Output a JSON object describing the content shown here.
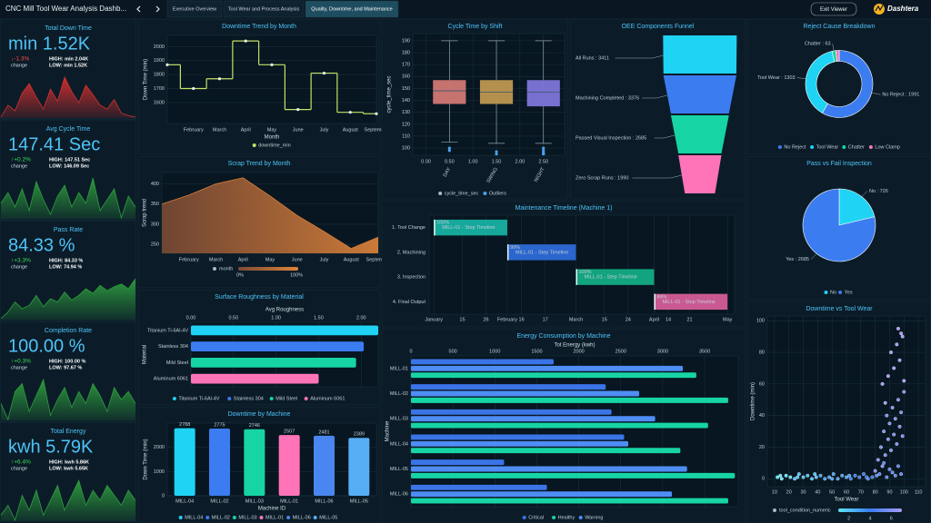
{
  "header": {
    "title": "CNC Mill Tool Wear Analysis Dashb...",
    "tabs": [
      "Executive Overview",
      "Tool Wear and Process Analysis",
      "Quality, Downtime, and Maintenance"
    ],
    "active_tab": 2,
    "exit": "Exit Viewer",
    "brand": "Dashtera"
  },
  "kpis": [
    {
      "title": "Total Down Time",
      "value": "min 1.52K",
      "change": "↓-1.3%",
      "change_label": "change",
      "high": "HIGH: min 2.04K",
      "low": "LOW: min 1.52K",
      "color": "#d32f2f",
      "spark": [
        20,
        35,
        28,
        50,
        62,
        45,
        30,
        55,
        40,
        70,
        52,
        38,
        60,
        48,
        35,
        30,
        42,
        25,
        22,
        20
      ]
    },
    {
      "title": "Avg Cycle Time",
      "value": "147.41 Sec",
      "change": "↑+0.2%",
      "change_label": "change",
      "high": "HIGH: 147.51 Sec",
      "low": "LOW: 146.09 Sec",
      "color": "#2e9e3e",
      "spark": [
        40,
        55,
        35,
        60,
        30,
        70,
        45,
        25,
        50,
        65,
        35,
        55,
        40,
        75,
        30,
        45,
        60,
        20,
        50,
        35
      ]
    },
    {
      "title": "Pass Rate",
      "value": "84.33 %",
      "change": "↑+3.3%",
      "change_label": "change",
      "high": "HIGH: 84.33 %",
      "low": "LOW: 74.94 %",
      "color": "#2e9e3e",
      "spark": [
        10,
        20,
        35,
        25,
        30,
        45,
        28,
        40,
        35,
        50,
        38,
        45,
        55,
        48,
        60,
        52,
        58,
        62,
        55,
        70
      ]
    },
    {
      "title": "Completion Rate",
      "value": "100.00 %",
      "change": "↑+0.3%",
      "change_label": "change",
      "high": "HIGH: 100.00 %",
      "low": "LOW: 97.67 %",
      "color": "#2e9e3e",
      "spark": [
        40,
        20,
        55,
        65,
        30,
        50,
        70,
        25,
        45,
        60,
        35,
        55,
        40,
        65,
        50,
        30,
        60,
        45,
        55,
        40
      ]
    },
    {
      "title": "Total Energy",
      "value": "kwh 5.79K",
      "change": "↑+6.4%",
      "change_label": "change",
      "high": "HIGH: kwh 5.86K",
      "low": "LOW: kwh 5.65K",
      "color": "#2e9e3e",
      "spark": [
        35,
        45,
        30,
        55,
        40,
        60,
        35,
        50,
        65,
        40,
        55,
        70,
        45,
        60,
        50,
        65,
        55,
        45,
        60,
        50
      ]
    }
  ],
  "chart_data": [
    {
      "type": "line",
      "title": "Downtime Trend by Month",
      "xlabel": "Month",
      "ylabel": "Down Time (min)",
      "categories": [
        null,
        "February",
        "March",
        "April",
        "May",
        "June",
        "July",
        "August",
        "September"
      ],
      "series": [
        {
          "name": "downtime_min",
          "color": "#c6e26a",
          "values": [
            1870,
            1700,
            1770,
            2040,
            1870,
            1550,
            1810,
            1530,
            1520
          ]
        }
      ],
      "ylim": [
        1450,
        2080
      ],
      "yticks": [
        1600,
        1700,
        1800,
        1900,
        2000
      ],
      "grid": true
    },
    {
      "type": "area",
      "title": "Scrap Trend by Month",
      "ylabel": "Scrap trend",
      "categories": [
        null,
        "February",
        "March",
        "April",
        "May",
        "June",
        "July",
        "August",
        "September"
      ],
      "series": [
        {
          "name": "month",
          "color": "#d9803a",
          "values": [
            350,
            372,
            400,
            415,
            370,
            322,
            282,
            240,
            268
          ]
        }
      ],
      "gradient_labels": [
        "0%",
        "100%"
      ],
      "ylim": [
        228,
        428
      ],
      "yticks": [
        250,
        300,
        350,
        400
      ],
      "grid": true
    },
    {
      "type": "hbar",
      "title": "Surface Roughness by Material",
      "xlabel": "Avg Roughness",
      "ylabel": "Material",
      "categories": [
        "Titanium Ti-6Al-4V",
        "Stainless 304",
        "Mild Steel",
        "Aluminum 6061"
      ],
      "values": [
        2.2,
        2.03,
        1.94,
        1.5
      ],
      "colors": [
        "#1fd3f5",
        "#3b7cf0",
        "#17d4a5",
        "#ff74b8"
      ],
      "xlim": [
        0,
        2.2
      ],
      "xticks": [
        {
          "value": 0,
          "label": "0.00"
        },
        {
          "value": 0.5,
          "label": "0.50"
        },
        {
          "value": 1,
          "label": "1.00"
        },
        {
          "value": 1.5,
          "label": "1.50"
        },
        {
          "value": 2,
          "label": "2.00"
        }
      ],
      "grid": true
    },
    {
      "type": "bar",
      "title": "Downtime by Machine",
      "xlabel": "Machine ID",
      "ylabel": "Down Time (min)",
      "categories": [
        "MILL-04",
        "MILL-02",
        "MILL-03",
        "MILL-01",
        "MILL-06",
        "MILL-05"
      ],
      "values": [
        2788,
        2775,
        2746,
        2507,
        2481,
        2389
      ],
      "colors": [
        "#1fd3f5",
        "#3b7cf0",
        "#17d4a5",
        "#ff74b8",
        "#4a86f0",
        "#56aef5"
      ],
      "ylim": [
        0,
        3000
      ],
      "yticks": [
        0,
        1000,
        2000
      ],
      "grid": true
    },
    {
      "type": "box",
      "title": "Cycle Time by Shift",
      "ylabel": "cycle_time_sec",
      "categories": [
        "DAY",
        "SWING",
        "NIGHT"
      ],
      "x": [
        0.5,
        1.5,
        2.5
      ],
      "colors": [
        "#e8837e",
        "#d2a657",
        "#8c80ef"
      ],
      "boxes": [
        {
          "min": 105,
          "q1": 137,
          "median": 148,
          "q3": 157,
          "max": 190,
          "outliers": [
            100,
            98
          ]
        },
        {
          "min": 104,
          "q1": 137,
          "median": 147,
          "q3": 157,
          "max": 190,
          "outliers": [
            97,
            95
          ]
        },
        {
          "min": 104,
          "q1": 135,
          "median": 147,
          "q3": 157,
          "max": 190,
          "outliers": [
            100,
            98,
            96,
            95
          ]
        }
      ],
      "legend": [
        "cycle_time_sec",
        "Outliers"
      ],
      "xlim": [
        -0.28,
        2.95
      ],
      "xticks": [
        {
          "value": 0,
          "label": "0.00"
        },
        {
          "value": 0.5,
          "label": "0.50"
        },
        {
          "value": 1,
          "label": "1.00"
        },
        {
          "value": 1.5,
          "label": "1.50"
        },
        {
          "value": 2,
          "label": "2.00"
        },
        {
          "value": 2.5,
          "label": "2.50"
        }
      ],
      "ylim": [
        94,
        196
      ],
      "yticks": [
        100,
        110,
        120,
        130,
        140,
        150,
        160,
        170,
        180,
        190
      ],
      "grid": true
    },
    {
      "type": "funnel",
      "title": "OEE Components Funnel",
      "values": [
        3411,
        3376,
        2685,
        1990
      ],
      "value_labels": [
        "All Runs : 3411",
        "Machining Completed : 3376",
        "Passed Visual Inspection : 2685",
        "Zero Scrap Runs : 1990"
      ],
      "colors": [
        "#1fd3f5",
        "#3b7cf0",
        "#17d4a5",
        "#ff74b8"
      ]
    },
    {
      "type": "gantt",
      "title": "Maintenance Timeline (Machine 1)",
      "categories": [
        "1. Tool Change",
        "2. Machining",
        "3. Inspection",
        "4. Final Output"
      ],
      "tasks": [
        {
          "start": 1,
          "end": 32,
          "progress": 100
        },
        {
          "start": 32,
          "end": 61,
          "progress": 99
        },
        {
          "start": 61,
          "end": 94,
          "progress": 100
        },
        {
          "start": 94,
          "end": 125,
          "progress": 84
        }
      ],
      "value_labels": [
        "100%",
        "99%",
        "100%",
        "84%"
      ],
      "task_labels": [
        "MILL-01 - Step Timeline",
        "MILL-01 - Step Timeline",
        "MILL-01 - Step Timeline",
        "MILL-01 - Step Timeline"
      ],
      "colors": [
        "#17b8a8",
        "#2f6fe0",
        "#14b48a",
        "#e0609e"
      ],
      "xlim": [
        -1,
        128
      ],
      "xticks": [
        {
          "value": 1,
          "label": "January"
        },
        {
          "value": 13,
          "label": "15"
        },
        {
          "value": 23,
          "label": "26"
        },
        {
          "value": 32,
          "label": "February"
        },
        {
          "value": 38,
          "label": "16"
        },
        {
          "value": 48,
          "label": "17"
        },
        {
          "value": 61,
          "label": "March"
        },
        {
          "value": 73,
          "label": "15"
        },
        {
          "value": 83,
          "label": "24"
        },
        {
          "value": 94,
          "label": "April"
        },
        {
          "value": 100,
          "label": "14"
        },
        {
          "value": 109,
          "label": "21"
        },
        {
          "value": 125,
          "label": "May"
        }
      ],
      "grid": true
    },
    {
      "type": "grouped_hbar",
      "title": "Energy Consumption by Machine",
      "xlabel": "Tot Energy (kwh)",
      "ylabel": "Machine",
      "categories": [
        "MILL-01",
        "MILL-02",
        "MILL-03",
        "MILL-04",
        "MILL-05",
        "MILL-06"
      ],
      "series": [
        {
          "name": "Critical",
          "color": "#3a74e6",
          "values": [
            1700,
            2320,
            2390,
            2540,
            1110,
            1620
          ]
        },
        {
          "name": "Healthy",
          "color": "#17d4a5",
          "values": [
            3400,
            3780,
            3540,
            3210,
            3860,
            3780
          ]
        },
        {
          "name": "Warning",
          "color": "#4f8df5",
          "values": [
            3240,
            2720,
            2910,
            2590,
            3290,
            3110
          ]
        }
      ],
      "order": [
        0,
        2,
        1
      ],
      "xlim": [
        0,
        3900
      ],
      "xticks": [
        0,
        500,
        1000,
        1500,
        2000,
        2500,
        3000,
        3500
      ],
      "grid": true
    },
    {
      "type": "pie",
      "donut": true,
      "title": "Reject Cause Breakdown",
      "categories": [
        "No Reject",
        "Tool Wear",
        "Chatter",
        "Low Clamp"
      ],
      "values": [
        1991,
        1303,
        63,
        54
      ],
      "value_labels": [
        "No Reject : 1991",
        "Tool Wear : 1303",
        "Chatter : 63",
        null
      ],
      "colors": [
        "#3b7cf0",
        "#1fd3f5",
        "#17d4a5",
        "#ff74b8"
      ]
    },
    {
      "type": "pie",
      "donut": false,
      "title": "Pass vs Fail Inspection",
      "categories": [
        "No",
        "Yes"
      ],
      "values": [
        726,
        2685
      ],
      "value_labels": [
        "No : 726",
        "Yes : 2685"
      ],
      "colors": [
        "#1fd3f5",
        "#3b7cf0"
      ]
    },
    {
      "type": "scatter",
      "title": "Downtime vs Tool Wear",
      "xlabel": "Tool Wear",
      "ylabel": "Downtime (min)",
      "colorbar_title": "tool_condition_numeric",
      "colorbar_ticks": [
        2,
        4,
        6
      ],
      "colorbar_range": [
        1,
        7
      ],
      "colorscale": [
        "#5fe3f5",
        "#3b7cf0",
        "#a99cf5"
      ],
      "x": [
        12,
        15,
        18,
        21,
        24,
        27,
        30,
        33,
        36,
        39,
        42,
        45,
        48,
        51,
        54,
        57,
        60,
        63,
        66,
        69,
        72,
        75,
        78,
        14,
        26,
        38,
        50,
        62,
        74,
        80,
        82,
        84,
        85,
        86,
        87,
        88,
        89,
        90,
        91,
        92,
        93,
        94,
        95,
        96,
        97,
        98,
        99,
        100,
        81,
        83,
        86,
        88,
        90,
        92,
        94,
        96,
        98,
        85,
        89,
        93,
        97,
        91,
        95,
        99,
        87,
        96,
        100,
        98
      ],
      "y": [
        1,
        0,
        2,
        1,
        0,
        3,
        1,
        2,
        0,
        1,
        2,
        0,
        1,
        3,
        0,
        2,
        1,
        0,
        2,
        1,
        3,
        0,
        1,
        2,
        1,
        3,
        0,
        2,
        1,
        5,
        12,
        20,
        8,
        30,
        15,
        40,
        25,
        35,
        18,
        45,
        28,
        38,
        22,
        50,
        33,
        42,
        27,
        55,
        2,
        3,
        10,
        1,
        6,
        4,
        2,
        8,
        3,
        60,
        65,
        70,
        75,
        80,
        85,
        90,
        48,
        95,
        62,
        92
      ],
      "condition": [
        1,
        1,
        1,
        1,
        2,
        2,
        2,
        2,
        2,
        2,
        3,
        3,
        3,
        3,
        3,
        3,
        3,
        4,
        4,
        4,
        4,
        4,
        4,
        1,
        2,
        2,
        3,
        3,
        4,
        6,
        6,
        6,
        6,
        6,
        6,
        6,
        6,
        6,
        6,
        6,
        6,
        6,
        6,
        6,
        6,
        6,
        6,
        6,
        5,
        5,
        5,
        5,
        5,
        5,
        5,
        5,
        5,
        7,
        7,
        7,
        7,
        7,
        7,
        7,
        7,
        7,
        7,
        7
      ],
      "xlim": [
        5,
        115
      ],
      "xticks": [
        10,
        20,
        30,
        40,
        50,
        60,
        70,
        80,
        90,
        100,
        110
      ],
      "ylim": [
        -5,
        103
      ],
      "yticks": [
        0,
        20,
        40,
        60,
        80,
        100
      ],
      "grid": true
    }
  ]
}
